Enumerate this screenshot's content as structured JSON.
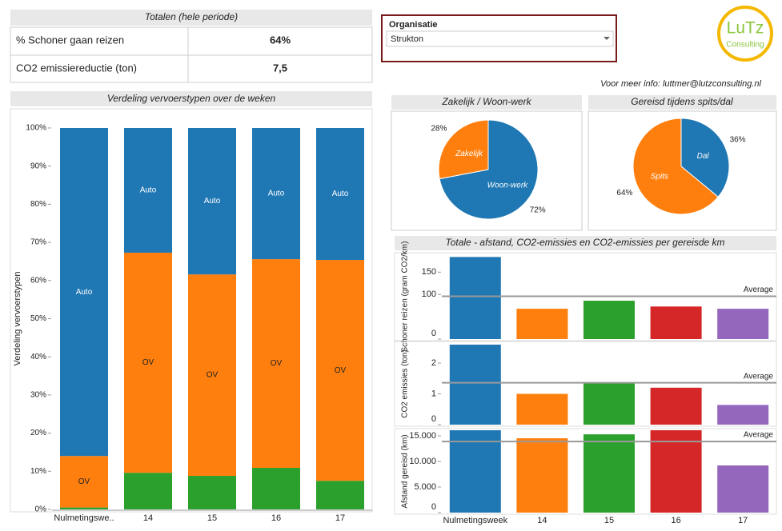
{
  "totals": {
    "title": "Totalen (hele periode)",
    "rows": [
      [
        "% Schoner gaan reizen",
        "64%"
      ],
      [
        "CO2 emissiereductie (ton)",
        "7,5"
      ]
    ]
  },
  "filter": {
    "label": "Organisatie",
    "value": "Strukton"
  },
  "logo": {
    "name": "LuTz",
    "subtitle": "Consulting"
  },
  "info": "Voor meer info: luttmer@lutzconsulting.nl",
  "chart_data": [
    {
      "type": "stacked-bar",
      "title": "Verdeling vervoerstypen over de weken",
      "y_label": "Verdeling vervoerstypen",
      "categories": [
        "Nulmetingswe..",
        "14",
        "15",
        "16",
        "17"
      ],
      "series": [
        {
          "color": "#2ca02c",
          "values": [
            0.5,
            9.6,
            8.8,
            10.9,
            7.5
          ]
        },
        {
          "name": "OV",
          "color": "#ff7f0e",
          "values": [
            13.5,
            57.7,
            52.8,
            54.7,
            57.9
          ]
        },
        {
          "name": "Auto",
          "color": "#1f77b4",
          "values": [
            86,
            32.7,
            38.4,
            34.4,
            34.6
          ]
        }
      ],
      "ylim": [
        0,
        100
      ],
      "yticks": [
        {
          "value": 0,
          "label": "0%"
        },
        {
          "value": 10,
          "label": "10%"
        },
        {
          "value": 20,
          "label": "20%"
        },
        {
          "value": 30,
          "label": "30%"
        },
        {
          "value": 40,
          "label": "40%"
        },
        {
          "value": 50,
          "label": "50%"
        },
        {
          "value": 60,
          "label": "60%"
        },
        {
          "value": 70,
          "label": "70%"
        },
        {
          "value": 80,
          "label": "80%"
        },
        {
          "value": 90,
          "label": "90%"
        },
        {
          "value": 100,
          "label": "100%"
        }
      ]
    },
    {
      "type": "pie",
      "title": "Zakelijk / Woon-werk",
      "categories": [
        "Woon-werk",
        "Zakelijk"
      ],
      "values": [
        72,
        28
      ],
      "value_labels": [
        "72%",
        "28%"
      ],
      "colors": [
        "#1f77b4",
        "#ff7f0e"
      ]
    },
    {
      "type": "pie",
      "title": "Gereisd tijdens spits/dal",
      "categories": [
        "Dal",
        "Spits"
      ],
      "values": [
        36,
        64
      ],
      "value_labels": [
        "36%",
        "64%"
      ],
      "colors": [
        "#1f77b4",
        "#ff7f0e"
      ]
    },
    {
      "type": "bar-panels",
      "title": "Totale - afstand, CO2-emissies en CO2-emissies per gereisde km",
      "categories": [
        "Nulmetingsweek",
        "14",
        "15",
        "16",
        "17"
      ],
      "colors": [
        "#1f77b4",
        "#ff7f0e",
        "#2ca02c",
        "#d62728",
        "#9467bd"
      ],
      "panels": [
        {
          "y_label": "Schoner reizen (gram CO2/km)",
          "values": [
            184,
            68,
            86,
            73,
            68
          ],
          "ylim": [
            0,
            190
          ],
          "yticks": [
            0,
            100,
            150
          ],
          "reference_line": {
            "label": "Average",
            "value": 96
          }
        },
        {
          "y_label": "CO2 emissies (ton)",
          "values": [
            2.6,
            1.0,
            1.36,
            1.2,
            0.64
          ],
          "ylim": [
            0,
            2.65
          ],
          "yticks": [
            0,
            1,
            2
          ],
          "reference_line": {
            "label": "Average",
            "value": 1.36
          }
        },
        {
          "y_label": "Afstand gereisd (km)",
          "values": [
            16100,
            14530,
            15300,
            16100,
            9220
          ],
          "ylim": [
            0,
            16100
          ],
          "yticks": [
            0,
            {
              "value": 5000,
              "label": "5.000"
            },
            {
              "value": 10000,
              "label": "10.000"
            },
            {
              "value": 15000,
              "label": "15.000"
            }
          ],
          "reference_line": {
            "label": "Average",
            "value": 13900
          }
        }
      ]
    }
  ]
}
